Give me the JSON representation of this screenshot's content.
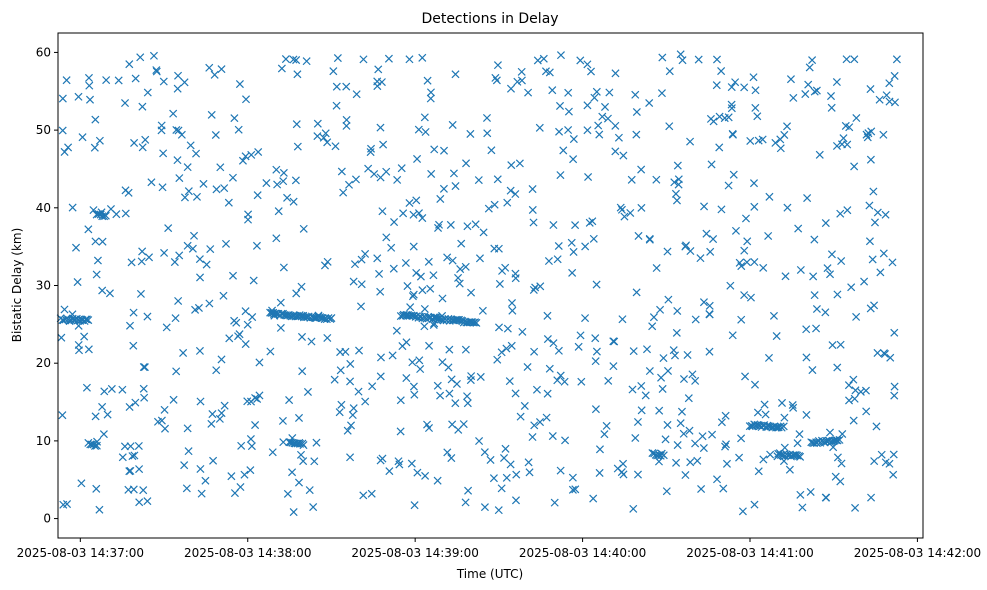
{
  "chart_data": {
    "type": "scatter",
    "title": "Detections in Delay",
    "xlabel": "Time (UTC)",
    "ylabel": "Bistatic Delay (km)",
    "marker": "x",
    "color": "#1f77b4",
    "grid": false,
    "x_ticks": [
      "2025-08-03 14:37:00",
      "2025-08-03 14:38:00",
      "2025-08-03 14:39:00",
      "2025-08-03 14:40:00",
      "2025-08-03 14:41:00",
      "2025-08-03 14:42:00"
    ],
    "y_ticks": [
      "0",
      "10",
      "20",
      "30",
      "40",
      "50",
      "60"
    ],
    "xlim": [
      "2025-08-03 14:36:52",
      "2025-08-03 14:42:02"
    ],
    "ylim": [
      -2.5,
      62.5
    ],
    "tracks": [
      {
        "start": "2025-08-03 14:36:53",
        "end": "2025-08-03 14:37:03",
        "delay_start": 25.7,
        "delay_end": 25.5
      },
      {
        "start": "2025-08-03 14:37:03",
        "end": "2025-08-03 14:37:06",
        "delay_start": 9.6,
        "delay_end": 9.4
      },
      {
        "start": "2025-08-03 14:37:06",
        "end": "2025-08-03 14:37:09",
        "delay_start": 39.2,
        "delay_end": 38.9
      },
      {
        "start": "2025-08-03 14:38:08",
        "end": "2025-08-03 14:38:30",
        "delay_start": 26.4,
        "delay_end": 25.7
      },
      {
        "start": "2025-08-03 14:38:15",
        "end": "2025-08-03 14:38:20",
        "delay_start": 9.7,
        "delay_end": 9.6
      },
      {
        "start": "2025-08-03 14:38:55",
        "end": "2025-08-03 14:39:22",
        "delay_start": 26.2,
        "delay_end": 25.2
      },
      {
        "start": "2025-08-03 14:40:25",
        "end": "2025-08-03 14:40:29",
        "delay_start": 8.3,
        "delay_end": 8.2
      },
      {
        "start": "2025-08-03 14:41:00",
        "end": "2025-08-03 14:41:12",
        "delay_start": 12.0,
        "delay_end": 11.8
      },
      {
        "start": "2025-08-03 14:41:10",
        "end": "2025-08-03 14:41:18",
        "delay_start": 8.3,
        "delay_end": 8.0
      },
      {
        "start": "2025-08-03 14:41:22",
        "end": "2025-08-03 14:41:32",
        "delay_start": 9.8,
        "delay_end": 10.0
      }
    ],
    "scattered": {
      "count": 880,
      "time_range": [
        "2025-08-03 14:36:53",
        "2025-08-03 14:41:53"
      ],
      "delay_range": [
        0.5,
        59.8
      ]
    }
  }
}
